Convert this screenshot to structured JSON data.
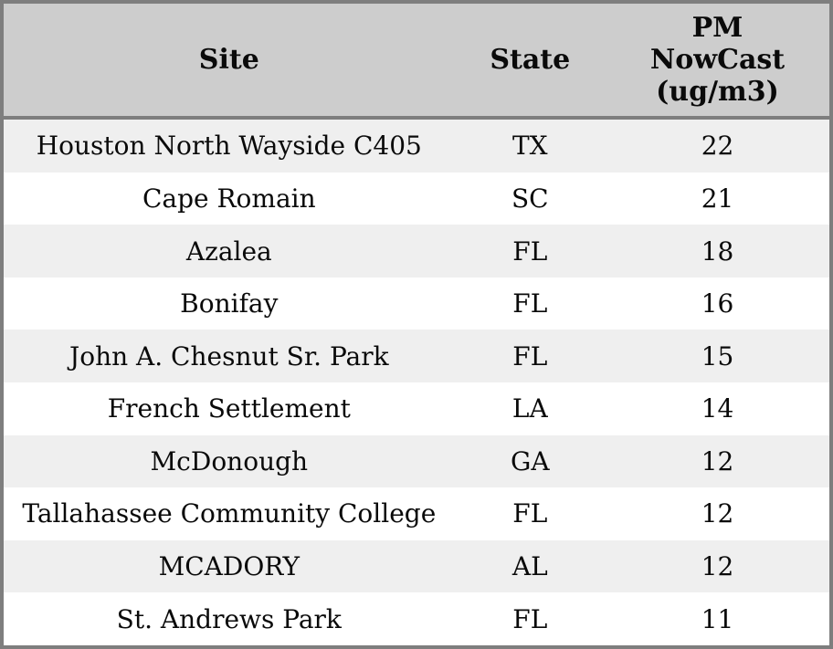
{
  "chart_data": {
    "type": "table",
    "columns": [
      "Site",
      "State",
      "PM NowCast (ug/m3)"
    ],
    "rows": [
      [
        "Houston North Wayside C405",
        "TX",
        22
      ],
      [
        "Cape Romain",
        "SC",
        21
      ],
      [
        "Azalea",
        "FL",
        18
      ],
      [
        "Bonifay",
        "FL",
        16
      ],
      [
        "John A. Chesnut Sr. Park",
        "FL",
        15
      ],
      [
        "French Settlement",
        "LA",
        14
      ],
      [
        "McDonough",
        "GA",
        12
      ],
      [
        "Tallahassee Community College",
        "FL",
        12
      ],
      [
        "MCADORY",
        "AL",
        12
      ],
      [
        "St. Andrews Park",
        "FL",
        11
      ]
    ],
    "layout": {
      "header_position": "top",
      "striped": true,
      "text_align": "center",
      "grid": "outer-border-only"
    }
  },
  "colors": {
    "header_bg": "#cdcdcd",
    "stripe_row_bg": "#efefef",
    "plain_row_bg": "#ffffff",
    "border": "#7e7e7e",
    "text": "#0a0a0a"
  }
}
